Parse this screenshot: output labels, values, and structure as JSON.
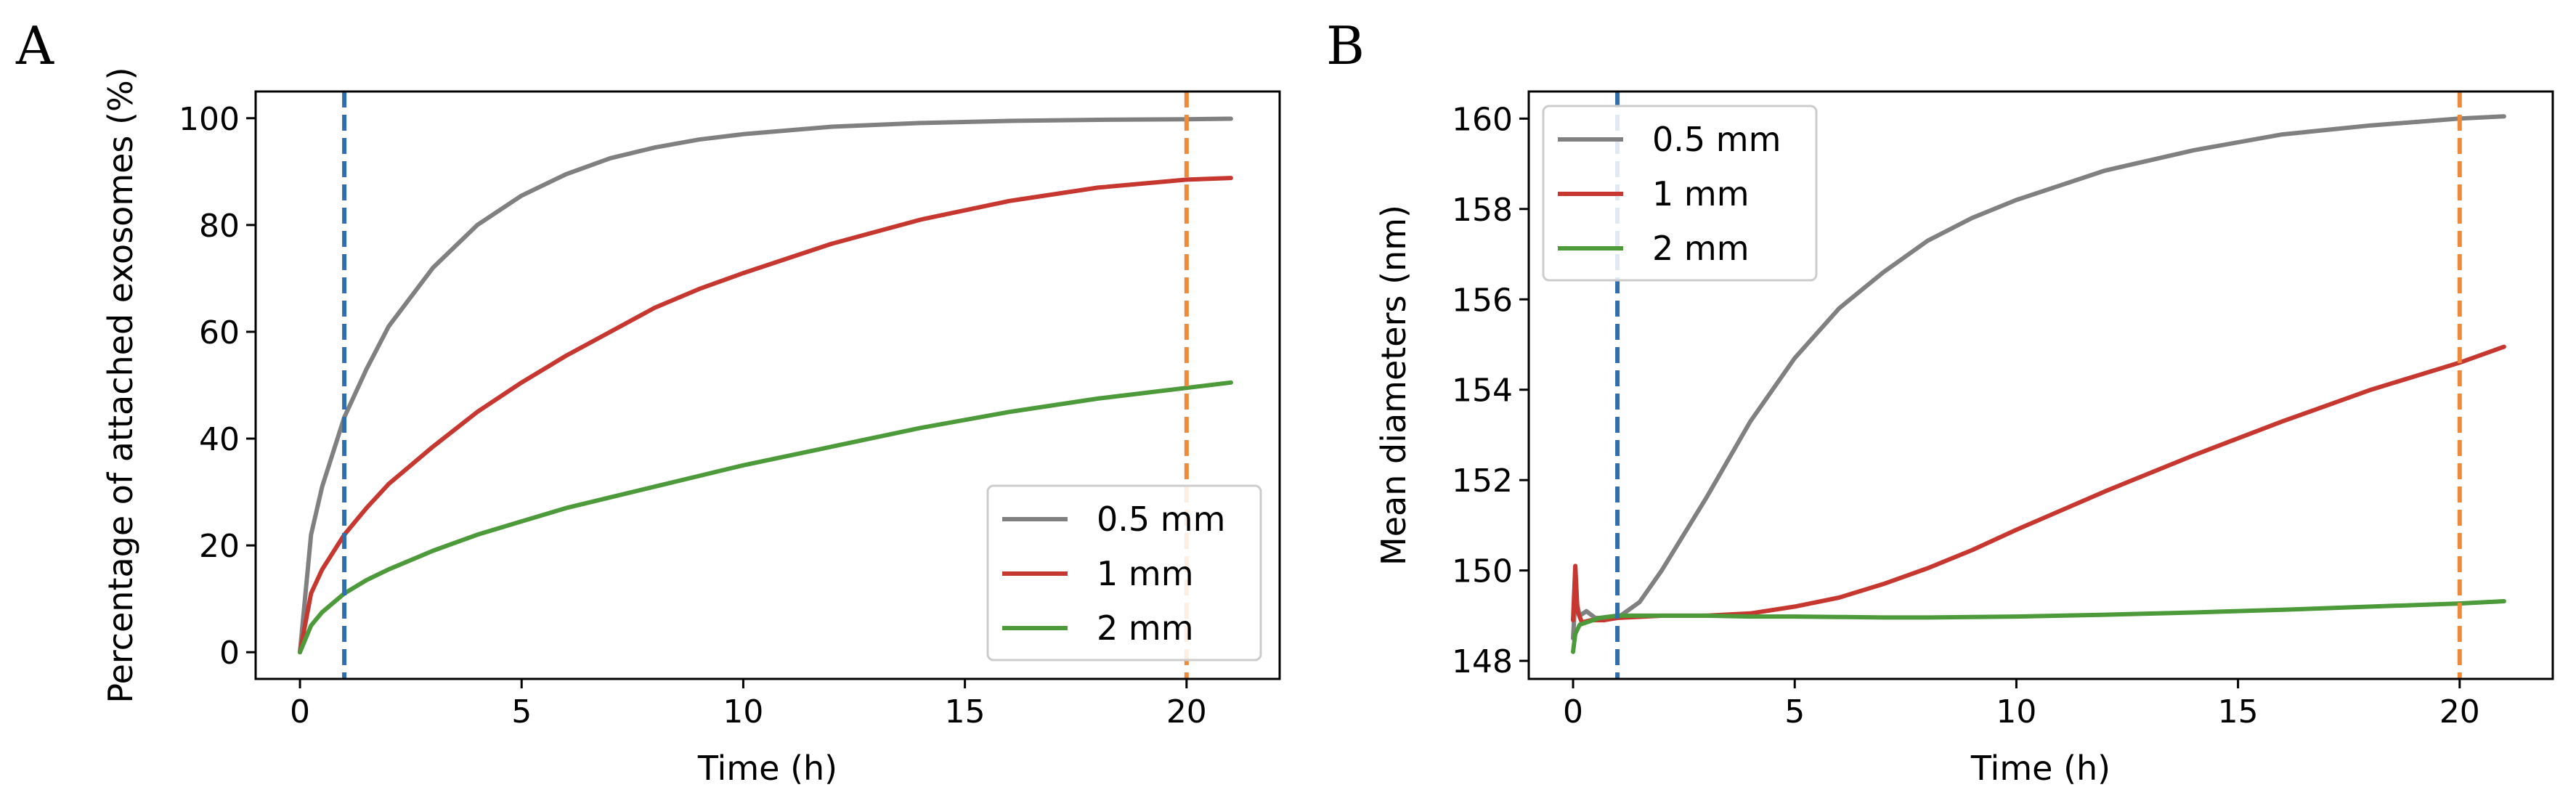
{
  "chart_data": [
    {
      "panel_label": "A",
      "type": "line",
      "xlabel": "Time (h)",
      "ylabel": "Percentage of attached exosomes (%)",
      "xlim": [
        -1,
        22.1
      ],
      "ylim": [
        -5,
        105
      ],
      "xticks": [
        0,
        5,
        10,
        15,
        20
      ],
      "xtick_labels": [
        "0",
        "5",
        "10",
        "15",
        "20"
      ],
      "yticks": [
        0,
        20,
        40,
        60,
        80,
        100
      ],
      "ytick_labels": [
        "0",
        "20",
        "40",
        "60",
        "80",
        "100"
      ],
      "grid": false,
      "legend_position": "lower-right",
      "vlines": [
        {
          "x": 1,
          "color": "#2f6fae",
          "style": "dashed"
        },
        {
          "x": 20,
          "color": "#ee8a3a",
          "style": "dashed"
        }
      ],
      "series": [
        {
          "name": "0.5 mm",
          "color": "#808080",
          "x": [
            0,
            0.25,
            0.5,
            1,
            1.5,
            2,
            3,
            4,
            5,
            6,
            7,
            8,
            9,
            10,
            12,
            14,
            16,
            18,
            20,
            21
          ],
          "y": [
            0,
            22,
            31,
            44,
            53,
            61,
            72,
            80,
            85.5,
            89.5,
            92.5,
            94.5,
            96,
            97,
            98.4,
            99.1,
            99.5,
            99.7,
            99.8,
            99.9
          ]
        },
        {
          "name": "1 mm",
          "color": "#c6372f",
          "x": [
            0,
            0.25,
            0.5,
            1,
            1.5,
            2,
            3,
            4,
            5,
            6,
            7,
            8,
            9,
            10,
            12,
            14,
            16,
            18,
            20,
            21
          ],
          "y": [
            0,
            11,
            15.5,
            22,
            27,
            31.5,
            38.5,
            45,
            50.5,
            55.5,
            60,
            64.5,
            68,
            71,
            76.5,
            81,
            84.5,
            87,
            88.5,
            88.8
          ]
        },
        {
          "name": "2 mm",
          "color": "#4c9a3a",
          "x": [
            0,
            0.25,
            0.5,
            1,
            1.5,
            2,
            3,
            4,
            5,
            6,
            7,
            8,
            9,
            10,
            12,
            14,
            16,
            18,
            20,
            21
          ],
          "y": [
            0,
            5,
            7.5,
            11,
            13.5,
            15.5,
            19,
            22,
            24.5,
            27,
            29,
            31,
            33,
            35,
            38.5,
            42,
            45,
            47.5,
            49.5,
            50.5
          ]
        }
      ]
    },
    {
      "panel_label": "B",
      "type": "line",
      "xlabel": "Time (h)",
      "ylabel": "Mean diameters (nm)",
      "xlim": [
        -1,
        22.1
      ],
      "ylim": [
        147.6,
        160.6
      ],
      "xticks": [
        0,
        5,
        10,
        15,
        20
      ],
      "xtick_labels": [
        "0",
        "5",
        "10",
        "15",
        "20"
      ],
      "yticks": [
        148,
        150,
        152,
        154,
        156,
        158,
        160
      ],
      "ytick_labels": [
        "148",
        "150",
        "152",
        "154",
        "156",
        "158",
        "160"
      ],
      "grid": false,
      "legend_position": "upper-left",
      "vlines": [
        {
          "x": 1,
          "color": "#2f6fae",
          "style": "dashed"
        },
        {
          "x": 20,
          "color": "#ee8a3a",
          "style": "dashed"
        }
      ],
      "series": [
        {
          "name": "0.5 mm",
          "color": "#808080",
          "x": [
            0,
            0.05,
            0.15,
            0.3,
            0.5,
            1,
            1.5,
            2,
            3,
            4,
            5,
            6,
            7,
            8,
            9,
            10,
            12,
            14,
            16,
            18,
            20,
            21
          ],
          "y": [
            148.5,
            149.4,
            149.0,
            149.1,
            148.95,
            148.95,
            149.3,
            150.0,
            151.6,
            153.3,
            154.7,
            155.8,
            156.6,
            157.3,
            157.8,
            158.2,
            158.85,
            159.3,
            159.65,
            159.85,
            160.0,
            160.05
          ]
        },
        {
          "name": "1 mm",
          "color": "#c6372f",
          "x": [
            0,
            0.05,
            0.1,
            0.2,
            0.4,
            0.7,
            1,
            2,
            3,
            4,
            5,
            6,
            7,
            8,
            9,
            10,
            12,
            14,
            16,
            18,
            20,
            21
          ],
          "y": [
            148.9,
            150.1,
            149.1,
            148.85,
            148.9,
            148.9,
            148.95,
            149.0,
            149.0,
            149.05,
            149.2,
            149.4,
            149.7,
            150.05,
            150.45,
            150.9,
            151.75,
            152.55,
            153.3,
            154.0,
            154.6,
            154.95
          ]
        },
        {
          "name": "2 mm",
          "color": "#4c9a3a",
          "x": [
            0,
            0.05,
            0.15,
            0.3,
            0.6,
            1,
            2,
            3,
            4,
            5,
            6,
            7,
            8,
            10,
            12,
            14,
            16,
            18,
            20,
            21
          ],
          "y": [
            148.2,
            148.6,
            148.8,
            148.85,
            148.95,
            149.0,
            149.0,
            149.0,
            148.98,
            148.98,
            148.97,
            148.96,
            148.96,
            148.98,
            149.02,
            149.07,
            149.13,
            149.2,
            149.27,
            149.32
          ]
        }
      ]
    }
  ]
}
